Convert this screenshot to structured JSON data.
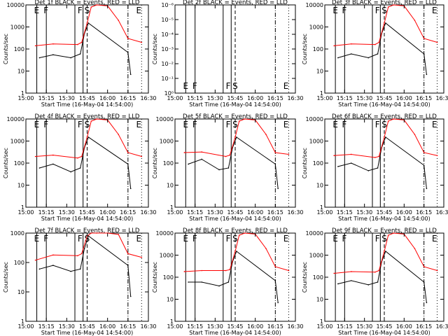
{
  "chart_data": [
    {
      "type": "line",
      "title": "Det 1f BLACK = Events, RED = LLD",
      "xlabel": "Start Time (16-May-04 14:54:00)",
      "ylabel": "Counts/sec",
      "x_tick_labels": [
        "15:00",
        "15:15",
        "15:30",
        "15:45",
        "16:00",
        "16:15",
        "16:30"
      ],
      "y_scale": "log",
      "ylim": [
        1,
        10000
      ],
      "y_tick_labels": [
        "1",
        "10",
        "100",
        "1000",
        "10000"
      ],
      "interval_markers": [
        "E",
        "F",
        "F",
        "S",
        "E"
      ],
      "series": [
        {
          "name": "BLACK = Events",
          "color": "#000000",
          "x": [
            "15:10",
            "15:20",
            "15:33",
            "15:40",
            "15:43",
            "15:46",
            "16:15",
            "16:17"
          ],
          "y": [
            40,
            55,
            40,
            60,
            500,
            1500,
            70,
            7
          ]
        },
        {
          "name": "RED = LLD",
          "color": "#ff0000",
          "x": [
            "15:07",
            "15:20",
            "15:38",
            "15:41",
            "15:45",
            "15:48",
            "15:52",
            "16:00",
            "16:08",
            "16:15",
            "16:25"
          ],
          "y": [
            140,
            170,
            160,
            200,
            1500,
            8000,
            11000,
            9000,
            2000,
            300,
            200
          ]
        }
      ]
    },
    {
      "type": "line",
      "title": "Det 2f BLACK = Events, RED = LLD",
      "xlabel": "Start Time (16-May-04 14:54:00)",
      "ylabel": "Counts/sec",
      "x_tick_labels": [
        "15:00",
        "15:15",
        "15:30",
        "15:45",
        "16:00",
        "16:15",
        "16:30"
      ],
      "y_scale": "log",
      "ylim": [
        1e-06,
        1
      ],
      "y_tick_labels": [
        "10⁰",
        "10⁻¹",
        "10⁻²",
        "10⁻³",
        "10⁻⁴",
        "10⁻⁵",
        "10⁻⁶"
      ],
      "interval_markers": [
        "E",
        "F",
        "F",
        "S",
        "E"
      ],
      "series": []
    },
    {
      "type": "line",
      "title": "Det 3f BLACK = Events, RED = LLD",
      "xlabel": "Start Time (16-May-04 14:54:00)",
      "ylabel": "Counts/sec",
      "x_tick_labels": [
        "15:00",
        "15:15",
        "15:30",
        "15:45",
        "16:00",
        "16:15",
        "16:30"
      ],
      "y_scale": "log",
      "ylim": [
        1,
        10000
      ],
      "y_tick_labels": [
        "1",
        "10",
        "100",
        "1000",
        "10000"
      ],
      "interval_markers": [
        "E",
        "F",
        "F",
        "S",
        "E"
      ],
      "series": [
        {
          "name": "BLACK = Events",
          "color": "#000000",
          "x": [
            "15:10",
            "15:20",
            "15:33",
            "15:40",
            "15:43",
            "15:46",
            "16:15",
            "16:17"
          ],
          "y": [
            40,
            60,
            40,
            60,
            500,
            1500,
            60,
            7
          ]
        },
        {
          "name": "RED = LLD",
          "color": "#ff0000",
          "x": [
            "15:07",
            "15:20",
            "15:38",
            "15:41",
            "15:45",
            "15:48",
            "15:52",
            "16:00",
            "16:08",
            "16:15",
            "16:25"
          ],
          "y": [
            140,
            170,
            160,
            200,
            1500,
            8000,
            11000,
            9000,
            2000,
            300,
            200
          ]
        }
      ]
    },
    {
      "type": "line",
      "title": "Det 4f BLACK = Events, RED = LLD",
      "xlabel": "Start Time (16-May-04 14:54:00)",
      "ylabel": "Counts/sec",
      "x_tick_labels": [
        "15:00",
        "15:15",
        "15:30",
        "15:45",
        "16:00",
        "16:15",
        "16:30"
      ],
      "y_scale": "log",
      "ylim": [
        1,
        10000
      ],
      "y_tick_labels": [
        "1",
        "10",
        "100",
        "1000",
        "10000"
      ],
      "interval_markers": [
        "E",
        "F",
        "F",
        "S",
        "E"
      ],
      "series": [
        {
          "name": "BLACK = Events",
          "color": "#000000",
          "x": [
            "15:10",
            "15:20",
            "15:33",
            "15:40",
            "15:43",
            "15:46",
            "16:15",
            "16:17"
          ],
          "y": [
            60,
            90,
            40,
            60,
            500,
            1500,
            90,
            7
          ]
        },
        {
          "name": "RED = LLD",
          "color": "#ff0000",
          "x": [
            "15:07",
            "15:20",
            "15:38",
            "15:41",
            "15:45",
            "15:48",
            "15:52",
            "16:00",
            "16:08",
            "16:15",
            "16:25"
          ],
          "y": [
            200,
            230,
            170,
            200,
            1500,
            8000,
            11000,
            9000,
            2000,
            300,
            200
          ]
        }
      ]
    },
    {
      "type": "line",
      "title": "Det 5f BLACK = Events, RED = LLD",
      "xlabel": "Start Time (16-May-04 14:54:00)",
      "ylabel": "Counts/sec",
      "x_tick_labels": [
        "15:00",
        "15:15",
        "15:30",
        "15:45",
        "16:00",
        "16:15",
        "16:30"
      ],
      "y_scale": "log",
      "ylim": [
        1,
        10000
      ],
      "y_tick_labels": [
        "1",
        "10",
        "100",
        "1000",
        "10000"
      ],
      "interval_markers": [
        "E",
        "F",
        "F",
        "S",
        "E"
      ],
      "series": [
        {
          "name": "BLACK = Events",
          "color": "#000000",
          "x": [
            "15:10",
            "15:20",
            "15:33",
            "15:40",
            "15:43",
            "15:46",
            "16:15",
            "16:17"
          ],
          "y": [
            90,
            150,
            50,
            60,
            500,
            1500,
            90,
            7
          ]
        },
        {
          "name": "RED = LLD",
          "color": "#ff0000",
          "x": [
            "15:07",
            "15:20",
            "15:38",
            "15:41",
            "15:45",
            "15:48",
            "15:52",
            "16:00",
            "16:08",
            "16:15",
            "16:25"
          ],
          "y": [
            300,
            320,
            200,
            230,
            1500,
            8000,
            11000,
            9000,
            2000,
            300,
            250
          ]
        }
      ]
    },
    {
      "type": "line",
      "title": "Det 6f BLACK = Events, RED = LLD",
      "xlabel": "Start Time (16-May-04 14:54:00)",
      "ylabel": "Counts/sec",
      "x_tick_labels": [
        "15:00",
        "15:15",
        "15:30",
        "15:45",
        "16:00",
        "16:15",
        "16:30"
      ],
      "y_scale": "log",
      "ylim": [
        1,
        10000
      ],
      "y_tick_labels": [
        "1",
        "10",
        "100",
        "1000",
        "10000"
      ],
      "interval_markers": [
        "E",
        "F",
        "F",
        "S",
        "E"
      ],
      "series": [
        {
          "name": "BLACK = Events",
          "color": "#000000",
          "x": [
            "15:10",
            "15:20",
            "15:33",
            "15:40",
            "15:43",
            "15:46",
            "16:15",
            "16:17"
          ],
          "y": [
            70,
            100,
            45,
            60,
            500,
            1500,
            80,
            7
          ]
        },
        {
          "name": "RED = LLD",
          "color": "#ff0000",
          "x": [
            "15:07",
            "15:20",
            "15:38",
            "15:41",
            "15:45",
            "15:48",
            "15:52",
            "16:00",
            "16:08",
            "16:15",
            "16:25"
          ],
          "y": [
            220,
            250,
            180,
            200,
            1500,
            8000,
            11000,
            9000,
            2000,
            300,
            220
          ]
        }
      ]
    },
    {
      "type": "line",
      "title": "Det 7f BLACK = Events, RED = LLD",
      "xlabel": "Start Time (16-May-04 14:54:00)",
      "ylabel": "Counts/sec",
      "x_tick_labels": [
        "15:00",
        "15:15",
        "15:30",
        "15:45",
        "16:00",
        "16:15",
        "16:30"
      ],
      "y_scale": "log",
      "ylim": [
        1,
        1000
      ],
      "y_tick_labels": [
        "1",
        "10",
        "100",
        "1000"
      ],
      "interval_markers": [
        "E",
        "F",
        "F",
        "S",
        "E"
      ],
      "series": [
        {
          "name": "BLACK = Events",
          "color": "#000000",
          "x": [
            "15:10",
            "15:20",
            "15:33",
            "15:40",
            "15:43",
            "15:46",
            "16:15",
            "16:17"
          ],
          "y": [
            60,
            80,
            50,
            60,
            300,
            800,
            80,
            7
          ]
        },
        {
          "name": "RED = LLD",
          "color": "#ff0000",
          "x": [
            "15:07",
            "15:20",
            "15:38",
            "15:41",
            "15:45",
            "15:48",
            "15:52",
            "16:00",
            "16:08",
            "16:15",
            "16:25"
          ],
          "y": [
            120,
            180,
            170,
            200,
            800,
            1100,
            1100,
            1100,
            900,
            200,
            150
          ]
        }
      ]
    },
    {
      "type": "line",
      "title": "Det 8f BLACK = Events, RED = LLD",
      "xlabel": "Start Time (16-May-04 14:54:00)",
      "ylabel": "Counts/sec",
      "x_tick_labels": [
        "15:00",
        "15:15",
        "15:30",
        "15:45",
        "16:00",
        "16:15",
        "16:30"
      ],
      "y_scale": "log",
      "ylim": [
        1,
        10000
      ],
      "y_tick_labels": [
        "1",
        "10",
        "100",
        "1000",
        "10000"
      ],
      "interval_markers": [
        "E",
        "F",
        "F",
        "S",
        "E"
      ],
      "series": [
        {
          "name": "BLACK = Events",
          "color": "#000000",
          "x": [
            "15:10",
            "15:20",
            "15:33",
            "15:40",
            "15:43",
            "15:46",
            "16:15",
            "16:17"
          ],
          "y": [
            60,
            60,
            40,
            60,
            500,
            1500,
            70,
            7
          ]
        },
        {
          "name": "RED = LLD",
          "color": "#ff0000",
          "x": [
            "15:07",
            "15:20",
            "15:38",
            "15:41",
            "15:45",
            "15:48",
            "15:52",
            "16:00",
            "16:08",
            "16:15",
            "16:25"
          ],
          "y": [
            180,
            200,
            200,
            220,
            1500,
            8000,
            11000,
            9000,
            2000,
            300,
            200
          ]
        }
      ]
    },
    {
      "type": "line",
      "title": "Det 9f BLACK = Events, RED = LLD",
      "xlabel": "Start Time (16-May-04 14:54:00)",
      "ylabel": "Counts/sec",
      "x_tick_labels": [
        "15:00",
        "15:15",
        "15:30",
        "15:45",
        "16:00",
        "16:15",
        "16:30"
      ],
      "y_scale": "log",
      "ylim": [
        1,
        10000
      ],
      "y_tick_labels": [
        "1",
        "10",
        "100",
        "1000",
        "10000"
      ],
      "interval_markers": [
        "E",
        "F",
        "F",
        "S",
        "E"
      ],
      "series": [
        {
          "name": "BLACK = Events",
          "color": "#000000",
          "x": [
            "15:10",
            "15:20",
            "15:33",
            "15:40",
            "15:43",
            "15:46",
            "16:15",
            "16:17"
          ],
          "y": [
            50,
            70,
            45,
            60,
            500,
            1500,
            60,
            7
          ]
        },
        {
          "name": "RED = LLD",
          "color": "#ff0000",
          "x": [
            "15:07",
            "15:20",
            "15:38",
            "15:41",
            "15:45",
            "15:48",
            "15:52",
            "16:00",
            "16:08",
            "16:15",
            "16:25"
          ],
          "y": [
            150,
            180,
            170,
            200,
            1500,
            8000,
            11000,
            9000,
            2000,
            300,
            200
          ]
        }
      ]
    }
  ]
}
